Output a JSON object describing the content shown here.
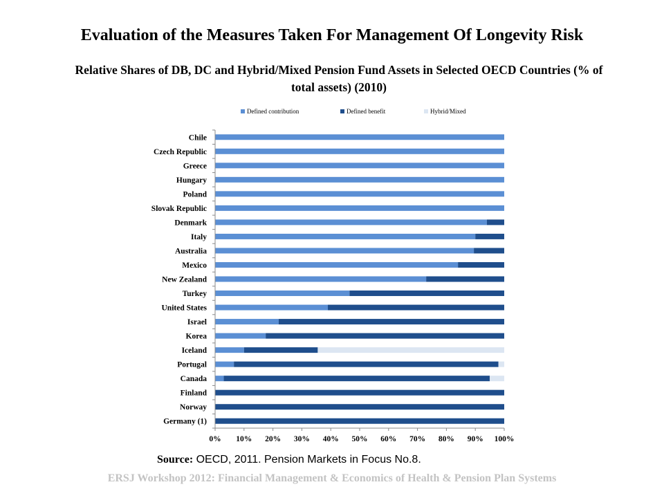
{
  "slide": {
    "title": "Evaluation of the Measures Taken For Management Of Longevity Risk",
    "source_label": "Source:",
    "source_text": "OECD, 2011. Pension Markets in Focus No.8.",
    "footer": "ERSJ Workshop 2012: Financial Management & Economics of  Health & Pension Plan Systems"
  },
  "colors": {
    "defined_contribution": "#5b8fd4",
    "defined_benefit": "#1f4e8c",
    "hybrid_mixed": "#dce6f2"
  },
  "chart_data": {
    "type": "bar",
    "orientation": "horizontal",
    "stacked": true,
    "title": "Relative Shares of DB, DC and Hybrid/Mixed Pension Fund Assets in Selected OECD Countries (% of total assets) (2010)",
    "xlabel": "",
    "ylabel": "",
    "xlim": [
      0,
      100
    ],
    "x_ticks": [
      "0%",
      "10%",
      "20%",
      "30%",
      "40%",
      "50%",
      "60%",
      "70%",
      "80%",
      "90%",
      "100%"
    ],
    "legend_position": "top",
    "grid": false,
    "categories": [
      "Chile",
      "Czech Republic",
      "Greece",
      "Hungary",
      "Poland",
      "Slovak Republic",
      "Denmark",
      "Italy",
      "Australia",
      "Mexico",
      "New Zealand",
      "Turkey",
      "United States",
      "Israel",
      "Korea",
      "Iceland",
      "Portugal",
      "Canada",
      "Finland",
      "Norway",
      "Germany (1)"
    ],
    "series": [
      {
        "name": "Defined contribution",
        "values": [
          100,
          100,
          100,
          100,
          100,
          100,
          94,
          90,
          89.5,
          84,
          73,
          46.5,
          39,
          22,
          17.5,
          10,
          6.5,
          3,
          0,
          0,
          0
        ]
      },
      {
        "name": "Defined benefit",
        "values": [
          0,
          0,
          0,
          0,
          0,
          0,
          6,
          10,
          10.5,
          16,
          27,
          53.5,
          61,
          78,
          82.5,
          25.5,
          91.5,
          92,
          100,
          100,
          100
        ]
      },
      {
        "name": "Hybrid/Mixed",
        "values": [
          0,
          0,
          0,
          0,
          0,
          0,
          0,
          0,
          0,
          0,
          0,
          0,
          0,
          0,
          0,
          64.5,
          2,
          5,
          0,
          0,
          0
        ]
      }
    ]
  }
}
